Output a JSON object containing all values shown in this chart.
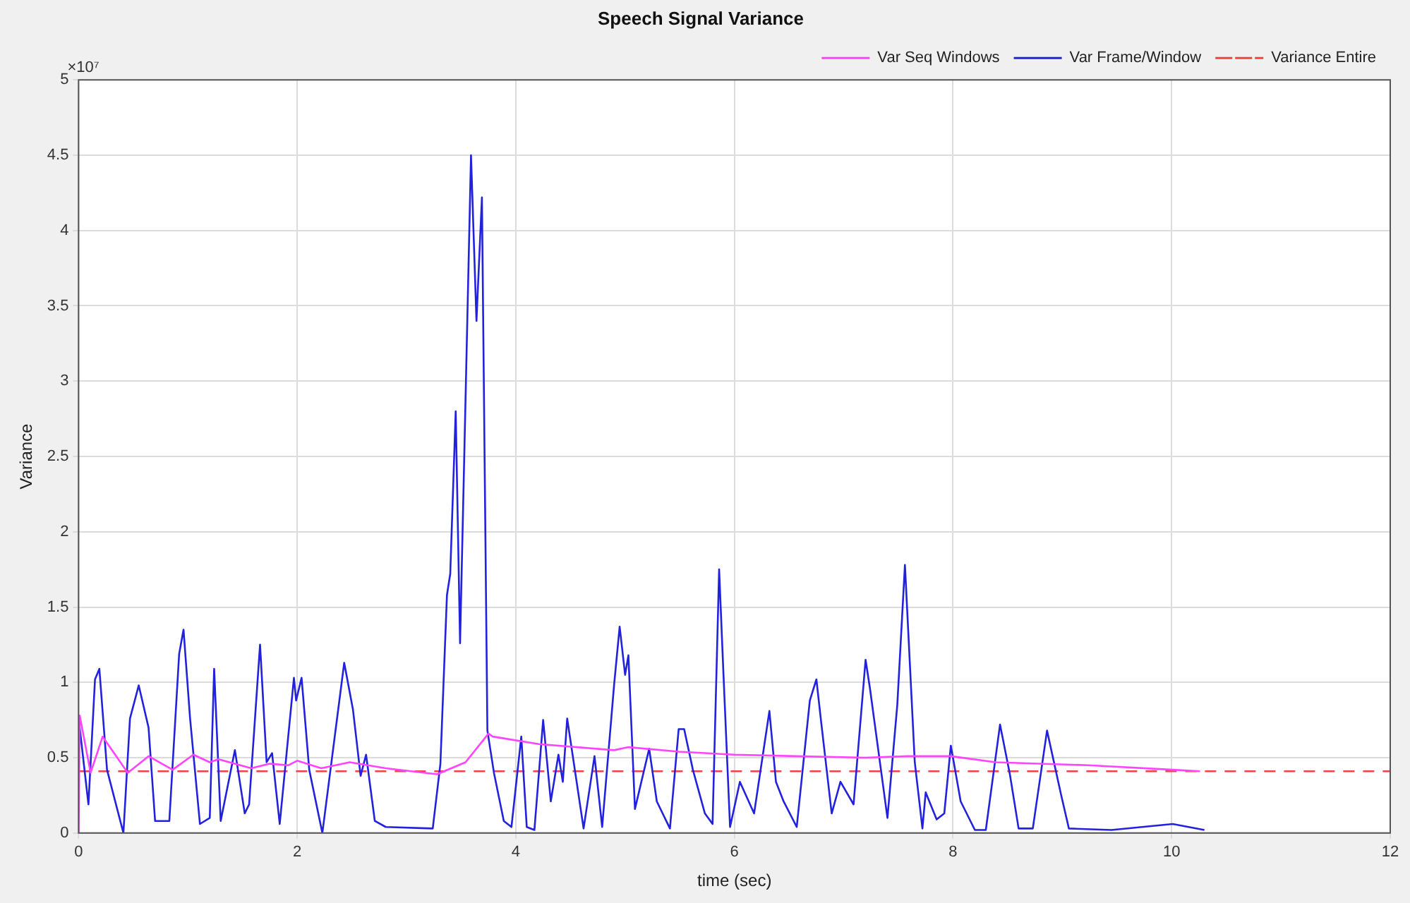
{
  "chart_data": {
    "type": "line",
    "title": "Speech Signal Variance",
    "xlabel": "time (sec)",
    "ylabel": "Variance",
    "annotations": [
      "×10⁷"
    ],
    "xlim": [
      0,
      12
    ],
    "xticks": [
      0,
      2,
      4,
      6,
      8,
      10,
      12
    ],
    "ylim": [
      0,
      5
    ],
    "yticks": [
      0,
      0.5,
      1,
      1.5,
      2,
      2.5,
      3,
      3.5,
      4,
      4.5,
      5
    ],
    "grid": true,
    "legend": "top right",
    "marker": "none",
    "series": [
      {
        "name": "Var Seq Windows",
        "color": "#ff44ff",
        "line_style": "solid",
        "x": [
          0,
          0.01,
          0.11,
          0.22,
          0.45,
          0.64,
          0.86,
          1.05,
          1.2,
          1.28,
          1.58,
          1.75,
          1.92,
          2.0,
          2.22,
          2.48,
          2.81,
          3.28,
          3.54,
          3.75,
          3.79,
          4.21,
          4.9,
          5.03,
          5.49,
          6.0,
          6.56,
          7.2,
          7.58,
          7.98,
          8.39,
          9.24,
          10.01,
          10.26
        ],
        "values": [
          0,
          0.78,
          0.4,
          0.64,
          0.4,
          0.51,
          0.42,
          0.52,
          0.47,
          0.49,
          0.43,
          0.46,
          0.45,
          0.48,
          0.43,
          0.47,
          0.43,
          0.39,
          0.47,
          0.66,
          0.64,
          0.59,
          0.55,
          0.57,
          0.54,
          0.52,
          0.51,
          0.5,
          0.51,
          0.51,
          0.47,
          0.45,
          0.42,
          0.41
        ]
      },
      {
        "name": "Var Frame/Window",
        "color": "#2222dd",
        "line_style": "solid",
        "x": [
          0,
          0.01,
          0.09,
          0.15,
          0.19,
          0.26,
          0.41,
          0.47,
          0.55,
          0.64,
          0.7,
          0.83,
          0.92,
          0.96,
          1.02,
          1.11,
          1.2,
          1.24,
          1.3,
          1.43,
          1.52,
          1.56,
          1.66,
          1.72,
          1.77,
          1.84,
          1.97,
          1.99,
          2.04,
          2.11,
          2.23,
          2.43,
          2.51,
          2.58,
          2.63,
          2.71,
          2.81,
          3.24,
          3.31,
          3.37,
          3.4,
          3.45,
          3.49,
          3.59,
          3.64,
          3.69,
          3.74,
          3.8,
          3.89,
          3.96,
          4.05,
          4.1,
          4.17,
          4.25,
          4.32,
          4.39,
          4.43,
          4.47,
          4.62,
          4.72,
          4.79,
          4.9,
          4.95,
          5.0,
          5.03,
          5.09,
          5.22,
          5.29,
          5.41,
          5.49,
          5.54,
          5.62,
          5.73,
          5.8,
          5.86,
          5.9,
          5.96,
          6.05,
          6.18,
          6.32,
          6.38,
          6.45,
          6.57,
          6.69,
          6.75,
          6.79,
          6.89,
          6.97,
          7.09,
          7.2,
          7.24,
          7.4,
          7.49,
          7.56,
          7.65,
          7.72,
          7.75,
          7.85,
          7.92,
          7.98,
          8.07,
          8.2,
          8.3,
          8.43,
          8.52,
          8.6,
          8.73,
          8.86,
          8.99,
          9.06,
          9.45,
          10.01,
          10.3
        ],
        "values": [
          0.78,
          0.7,
          0.19,
          1.02,
          1.09,
          0.42,
          0,
          0.76,
          0.98,
          0.7,
          0.08,
          0.08,
          1.19,
          1.35,
          0.76,
          0.06,
          0.1,
          1.09,
          0.08,
          0.55,
          0.13,
          0.19,
          1.25,
          0.47,
          0.53,
          0.06,
          1.03,
          0.88,
          1.03,
          0.42,
          0,
          1.13,
          0.82,
          0.38,
          0.52,
          0.08,
          0.04,
          0.03,
          0.46,
          1.58,
          1.72,
          2.8,
          1.26,
          4.5,
          3.4,
          4.22,
          0.68,
          0.4,
          0.08,
          0.04,
          0.64,
          0.04,
          0.02,
          0.75,
          0.21,
          0.52,
          0.34,
          0.76,
          0.03,
          0.51,
          0.04,
          0.99,
          1.37,
          1.05,
          1.18,
          0.16,
          0.56,
          0.21,
          0.03,
          0.69,
          0.69,
          0.42,
          0.13,
          0.06,
          1.75,
          1.05,
          0.04,
          0.34,
          0.13,
          0.81,
          0.34,
          0.21,
          0.04,
          0.88,
          1.02,
          0.76,
          0.13,
          0.34,
          0.19,
          1.15,
          0.96,
          0.1,
          0.85,
          1.78,
          0.47,
          0.03,
          0.27,
          0.09,
          0.13,
          0.58,
          0.21,
          0.02,
          0.02,
          0.72,
          0.39,
          0.03,
          0.03,
          0.68,
          0.25,
          0.03,
          0.02,
          0.06,
          0.02
        ]
      },
      {
        "name": "Variance Entire",
        "color": "#ee4444",
        "line_style": "dashed",
        "x": [
          0,
          12
        ],
        "values": [
          0.41,
          0.41
        ]
      }
    ]
  }
}
